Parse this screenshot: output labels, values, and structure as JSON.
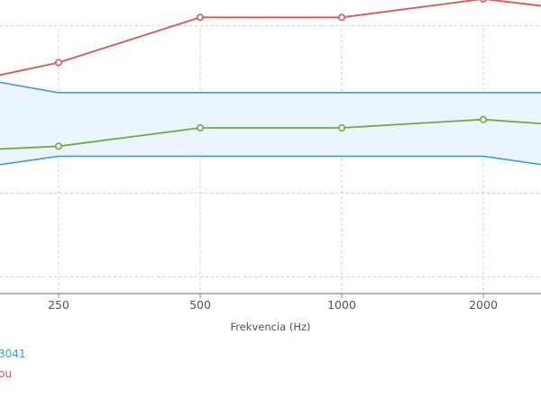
{
  "chart_data": {
    "type": "line",
    "xlabel": "Frekvencia (Hz)",
    "x_ticks": [
      250,
      500,
      1000,
      2000
    ],
    "y_range": [
      -100,
      1600
    ],
    "grid": true,
    "band": {
      "name": "",
      "color": "#3a9de0",
      "fill": "#eaf5fd",
      "upper": [
        [
          125,
          1250
        ],
        [
          250,
          1100
        ],
        [
          500,
          1100
        ],
        [
          1000,
          1100
        ],
        [
          2000,
          1100
        ],
        [
          4000,
          1100
        ]
      ],
      "lower": [
        [
          125,
          600
        ],
        [
          250,
          720
        ],
        [
          500,
          720
        ],
        [
          1000,
          720
        ],
        [
          2000,
          720
        ],
        [
          4000,
          600
        ]
      ]
    },
    "series": [
      {
        "name": "",
        "color": "#e05252",
        "points": [
          [
            125,
            1100
          ],
          [
            250,
            1280
          ],
          [
            500,
            1550
          ],
          [
            1000,
            1550
          ],
          [
            2000,
            1660
          ],
          [
            4000,
            1560
          ]
        ]
      },
      {
        "name": "",
        "color": "#72ab3c",
        "points": [
          [
            125,
            740
          ],
          [
            250,
            780
          ],
          [
            500,
            890
          ],
          [
            1000,
            890
          ],
          [
            2000,
            940
          ],
          [
            4000,
            880
          ]
        ]
      }
    ],
    "legend_fragments": [
      {
        "text": "3041",
        "color": "#3a9de0"
      },
      {
        "text": "ou",
        "color": "#e05252"
      }
    ]
  }
}
